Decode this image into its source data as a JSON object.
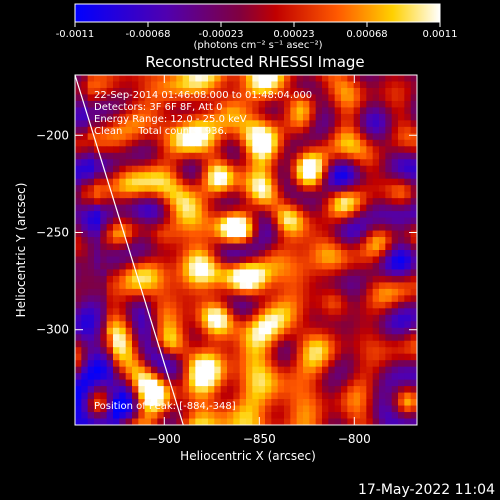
{
  "colorbar": {
    "ticks": [
      "-0.0011",
      "-0.00068",
      "-0.00023",
      "0.00023",
      "0.00068",
      "0.0011"
    ],
    "unit_label": "(photons cm⁻² s⁻¹ asec⁻²)",
    "colors": [
      "#0000ff",
      "#4b00b4",
      "#7a0a6a",
      "#c00000",
      "#ff5a00",
      "#ffd000",
      "#ffffff"
    ]
  },
  "chart_data": {
    "type": "heatmap",
    "title": "Reconstructed RHESSI Image",
    "xlabel": "Heliocentric X (arcsec)",
    "ylabel": "Heliocentric Y (arcsec)",
    "xlim": [
      -947,
      -767
    ],
    "ylim": [
      -349,
      -169
    ],
    "xticks": [
      -900,
      -850,
      -800
    ],
    "yticks": [
      -200,
      -250,
      -300
    ],
    "value_range": [
      -0.0011,
      0.0011
    ],
    "annotations": [
      "22-Sep-2014 01:46:08.000 to 01:48:04.000",
      "Detectors: 3F 6F 8F, Att 0",
      "Energy Range: 12.0 - 25.0 keV",
      "Clean     Total counts: 936."
    ],
    "peak_label": "Position of Peak: [-884,-348]",
    "peak": [
      -884,
      -348
    ],
    "limb_line": [
      [
        -947,
        -169
      ],
      [
        -890,
        -349
      ]
    ]
  },
  "footer": {
    "date": "17-May-2022 11:04"
  }
}
